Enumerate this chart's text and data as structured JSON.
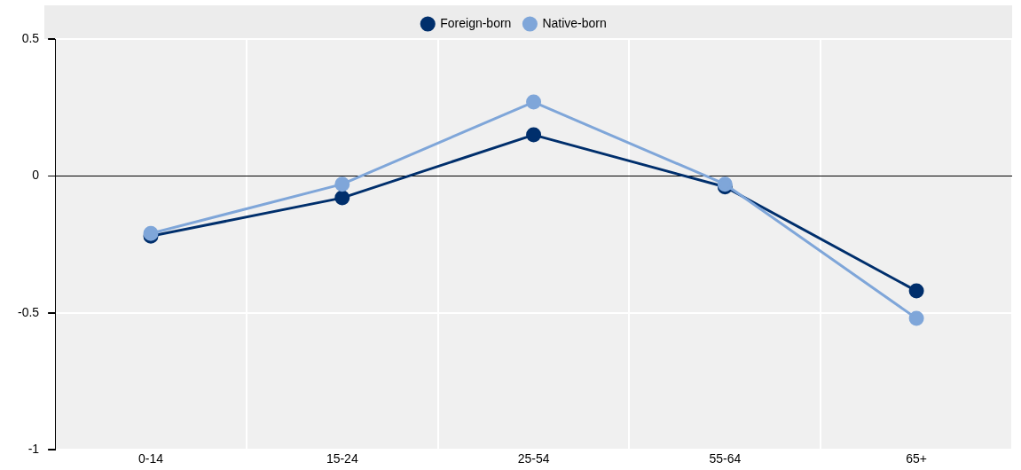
{
  "chart_data": {
    "type": "line",
    "categories": [
      "0-14",
      "15-24",
      "25-54",
      "55-64",
      "65+"
    ],
    "series": [
      {
        "name": "Foreign-born",
        "color": "#002f6c",
        "values": [
          -0.22,
          -0.08,
          0.15,
          -0.04,
          -0.42
        ]
      },
      {
        "name": "Native-born",
        "color": "#7fa6d9",
        "values": [
          -0.21,
          -0.03,
          0.27,
          -0.03,
          -0.52
        ]
      }
    ],
    "ylim": [
      -1,
      0.5
    ],
    "yticks": [
      -1,
      -0.5,
      0,
      0.5
    ],
    "grid": true,
    "legend": "top",
    "marker": "circle",
    "line_style": "solid"
  }
}
